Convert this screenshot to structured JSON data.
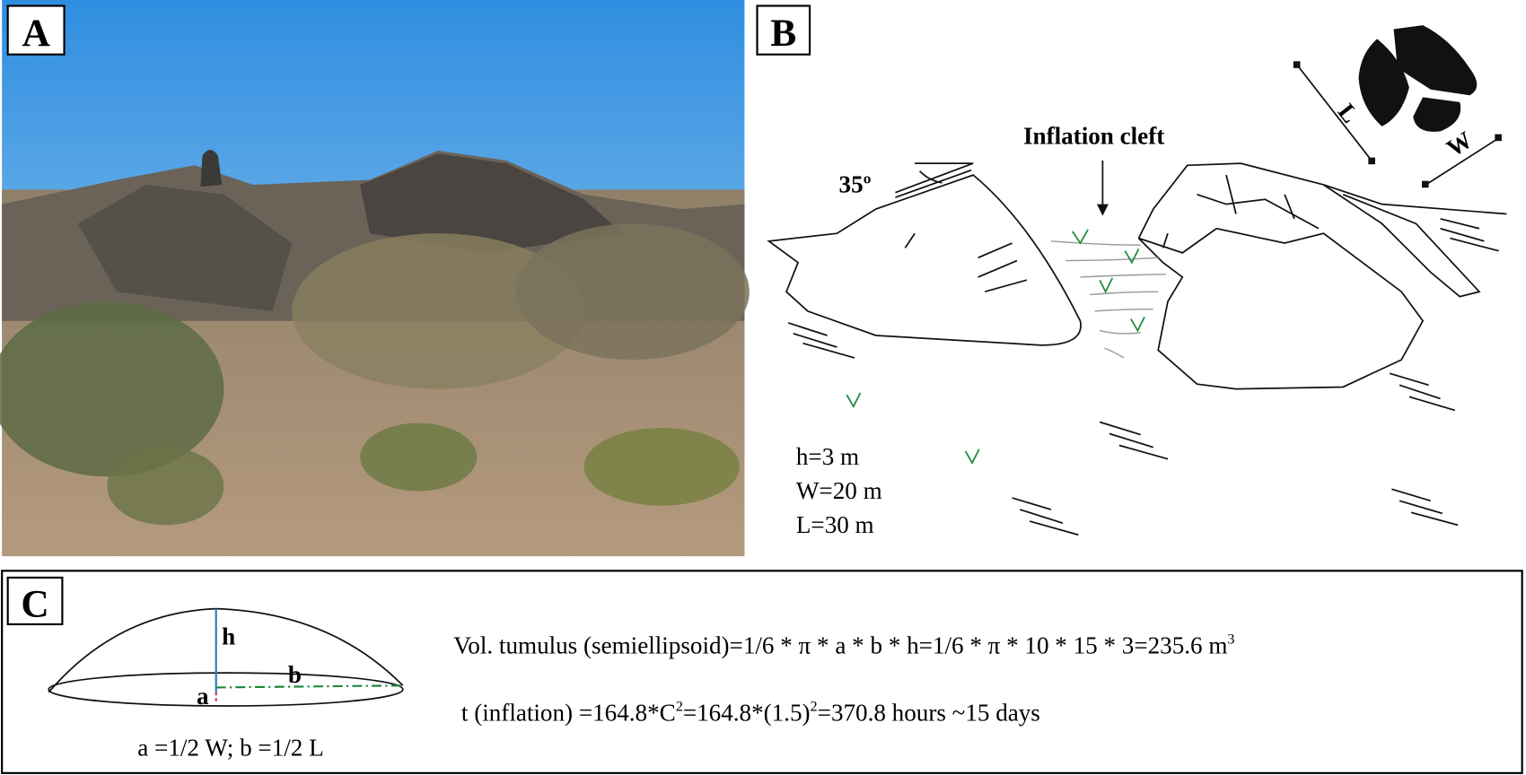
{
  "panels": {
    "a": {
      "label": "A"
    },
    "b": {
      "label": "B",
      "angle": "35º",
      "cleft_label": "Inflation cleft",
      "axis_l": "L",
      "axis_w": "W",
      "dimensions": [
        "h=3 m",
        "W=20 m",
        "L=30 m"
      ]
    },
    "c": {
      "label": "C",
      "diagram": {
        "h": "h",
        "b": "b",
        "a": "a",
        "caption": "a =1/2 W; b =1/2 L"
      },
      "volume": {
        "text": "Vol. tumulus (semiellipsoid)=1/6 * π * a * b * h=1/6 * π * 10 * 15 * 3=235.6 m",
        "sup": "3"
      },
      "time": {
        "parts": [
          "t (inflation) =164.8*C",
          "2",
          "=164.8*(1.5)",
          "2",
          "=370.8 hours ~15 days"
        ]
      }
    }
  }
}
